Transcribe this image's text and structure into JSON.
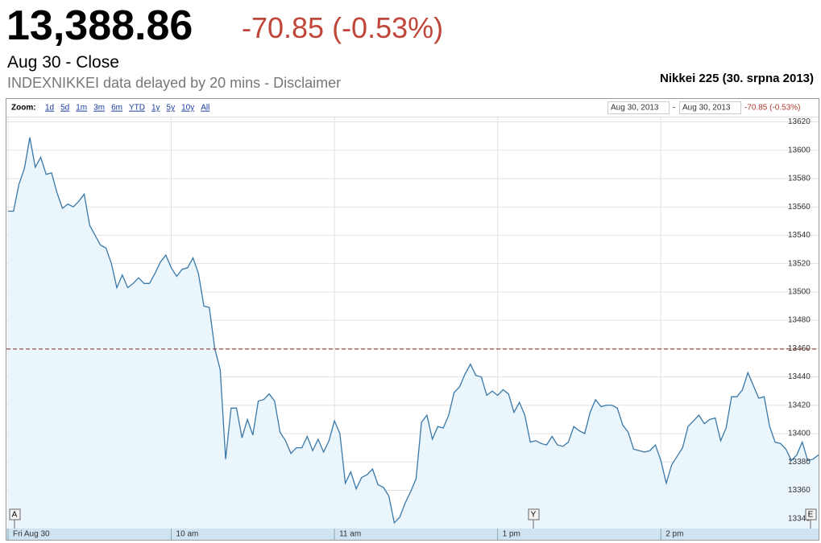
{
  "header": {
    "price": "13,388.86",
    "change": "-70.85 (-0.53%)",
    "status": "Aug 30 - Close",
    "disclaimer": "INDEXNIKKEI data delayed by 20 mins - Disclaimer"
  },
  "toolbar": {
    "zoom_label": "Zoom:",
    "zoom_options": [
      "1d",
      "5d",
      "1m",
      "3m",
      "6m",
      "YTD",
      "1y",
      "5y",
      "10y",
      "All"
    ],
    "range_from": "Aug 30, 2013",
    "range_separator": "-",
    "range_to": "Aug 30, 2013",
    "range_change": "-70.85 (-0.53%)"
  },
  "chart_data": {
    "type": "line",
    "title": "Nikkei 225 (30. srpna 2013)",
    "color": "#3a78a8",
    "fill": "#eaf5fc",
    "grid": true,
    "reference_line": 13459.71,
    "reference_color": "#8b2020",
    "flags": [
      "A",
      "Y",
      "E"
    ],
    "xlim": [
      0,
      149
    ],
    "xticks": [
      {
        "value": 0,
        "label": "Fri Aug 30"
      },
      {
        "value": 30,
        "label": "10 am"
      },
      {
        "value": 60,
        "label": "11 am"
      },
      {
        "value": 90,
        "label": "1 pm"
      },
      {
        "value": 120,
        "label": "2 pm"
      }
    ],
    "ylim": [
      13333,
      13622
    ],
    "yticks": [
      13340,
      13360,
      13380,
      13400,
      13420,
      13440,
      13460,
      13480,
      13500,
      13520,
      13540,
      13560,
      13580,
      13600,
      13620
    ],
    "values": [
      13557,
      13557,
      13576,
      13587,
      13609,
      13588,
      13595,
      13583,
      13584,
      13570,
      13559,
      13562,
      13560,
      13564,
      13569,
      13547,
      13540,
      13533,
      13531,
      13520,
      13503,
      13512,
      13503,
      13506,
      13510,
      13506,
      13506,
      13513,
      13521,
      13526,
      13517,
      13511,
      13516,
      13517,
      13524,
      13513,
      13490,
      13489,
      13460,
      13445,
      13382,
      13418,
      13418,
      13397,
      13410,
      13399,
      13423,
      13424,
      13428,
      13423,
      13401,
      13395,
      13386,
      13390,
      13390,
      13398,
      13388,
      13396,
      13387,
      13395,
      13409,
      13400,
      13365,
      13373,
      13361,
      13369,
      13371,
      13375,
      13364,
      13362,
      13356,
      13337,
      13341,
      13351,
      13359,
      13368,
      13408,
      13413,
      13396,
      13405,
      13404,
      13413,
      13429,
      13433,
      13442,
      13449,
      13441,
      13440,
      13427,
      13430,
      13427,
      13431,
      13428,
      13415,
      13422,
      13413,
      13394,
      13395,
      13393,
      13392,
      13398,
      13392,
      13391,
      13394,
      13405,
      13402,
      13400,
      13415,
      13424,
      13419,
      13420,
      13420,
      13418,
      13406,
      13401,
      13389,
      13388,
      13387,
      13388,
      13392,
      13381,
      13365,
      13378,
      13384,
      13390,
      13405,
      13409,
      13413,
      13407,
      13410,
      13411,
      13395,
      13404,
      13426,
      13426,
      13431,
      13443,
      13434,
      13425,
      13426,
      13405,
      13394,
      13393,
      13389,
      13381,
      13385,
      13394,
      13381,
      13382,
      13385
    ]
  }
}
